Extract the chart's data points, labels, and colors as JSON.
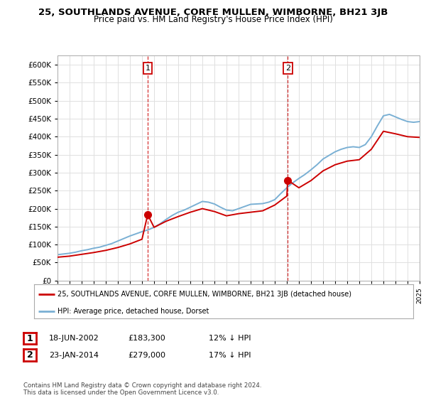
{
  "title": "25, SOUTHLANDS AVENUE, CORFE MULLEN, WIMBORNE, BH21 3JB",
  "subtitle": "Price paid vs. HM Land Registry's House Price Index (HPI)",
  "legend_label_red": "25, SOUTHLANDS AVENUE, CORFE MULLEN, WIMBORNE, BH21 3JB (detached house)",
  "legend_label_blue": "HPI: Average price, detached house, Dorset",
  "table_rows": [
    {
      "num": "1",
      "date": "18-JUN-2002",
      "price": "£183,300",
      "change": "12% ↓ HPI"
    },
    {
      "num": "2",
      "date": "23-JAN-2014",
      "price": "£279,000",
      "change": "17% ↓ HPI"
    }
  ],
  "footnote": "Contains HM Land Registry data © Crown copyright and database right 2024.\nThis data is licensed under the Open Government Licence v3.0.",
  "ylim": [
    0,
    625000
  ],
  "yticks": [
    0,
    50000,
    100000,
    150000,
    200000,
    250000,
    300000,
    350000,
    400000,
    450000,
    500000,
    550000,
    600000
  ],
  "background_color": "#ffffff",
  "grid_color": "#e0e0e0",
  "red_color": "#cc0000",
  "blue_color": "#7ab0d4",
  "marker1_year": 2002.47,
  "marker1_price": 183300,
  "marker2_year": 2014.07,
  "marker2_price": 279000,
  "hpi_years": [
    1995.0,
    1995.5,
    1996.0,
    1996.5,
    1997.0,
    1997.5,
    1998.0,
    1998.5,
    1999.0,
    1999.5,
    2000.0,
    2000.5,
    2001.0,
    2001.5,
    2002.0,
    2002.5,
    2003.0,
    2003.5,
    2004.0,
    2004.5,
    2005.0,
    2005.5,
    2006.0,
    2006.5,
    2007.0,
    2007.5,
    2008.0,
    2008.5,
    2009.0,
    2009.5,
    2010.0,
    2010.5,
    2011.0,
    2011.5,
    2012.0,
    2012.5,
    2013.0,
    2013.5,
    2014.0,
    2014.5,
    2015.0,
    2015.5,
    2016.0,
    2016.5,
    2017.0,
    2017.5,
    2018.0,
    2018.5,
    2019.0,
    2019.5,
    2020.0,
    2020.5,
    2021.0,
    2021.5,
    2022.0,
    2022.5,
    2023.0,
    2023.5,
    2024.0,
    2024.5,
    2025.0
  ],
  "hpi_values": [
    72000,
    74000,
    76000,
    79000,
    83000,
    86000,
    90000,
    93000,
    98000,
    103000,
    110000,
    117000,
    124000,
    130000,
    136000,
    141000,
    148000,
    158000,
    170000,
    181000,
    190000,
    196000,
    204000,
    212000,
    220000,
    218000,
    213000,
    204000,
    196000,
    194000,
    200000,
    206000,
    212000,
    213000,
    214000,
    218000,
    225000,
    242000,
    258000,
    272000,
    284000,
    295000,
    308000,
    322000,
    338000,
    348000,
    358000,
    365000,
    370000,
    372000,
    370000,
    378000,
    400000,
    430000,
    458000,
    462000,
    455000,
    448000,
    442000,
    440000,
    442000
  ],
  "red_years": [
    1995.0,
    1996.0,
    1997.0,
    1998.0,
    1999.0,
    2000.0,
    2001.0,
    2002.0,
    2002.47,
    2003.0,
    2004.0,
    2005.0,
    2006.0,
    2007.0,
    2008.0,
    2009.0,
    2010.0,
    2011.0,
    2012.0,
    2013.0,
    2014.0,
    2014.07,
    2015.0,
    2016.0,
    2017.0,
    2018.0,
    2019.0,
    2020.0,
    2021.0,
    2022.0,
    2023.0,
    2024.0,
    2025.0
  ],
  "red_values": [
    65000,
    68000,
    73000,
    78000,
    84000,
    92000,
    102000,
    115000,
    183300,
    148000,
    165000,
    178000,
    190000,
    200000,
    192000,
    180000,
    186000,
    190000,
    194000,
    210000,
    235000,
    279000,
    258000,
    278000,
    305000,
    322000,
    332000,
    336000,
    365000,
    415000,
    408000,
    400000,
    398000
  ]
}
